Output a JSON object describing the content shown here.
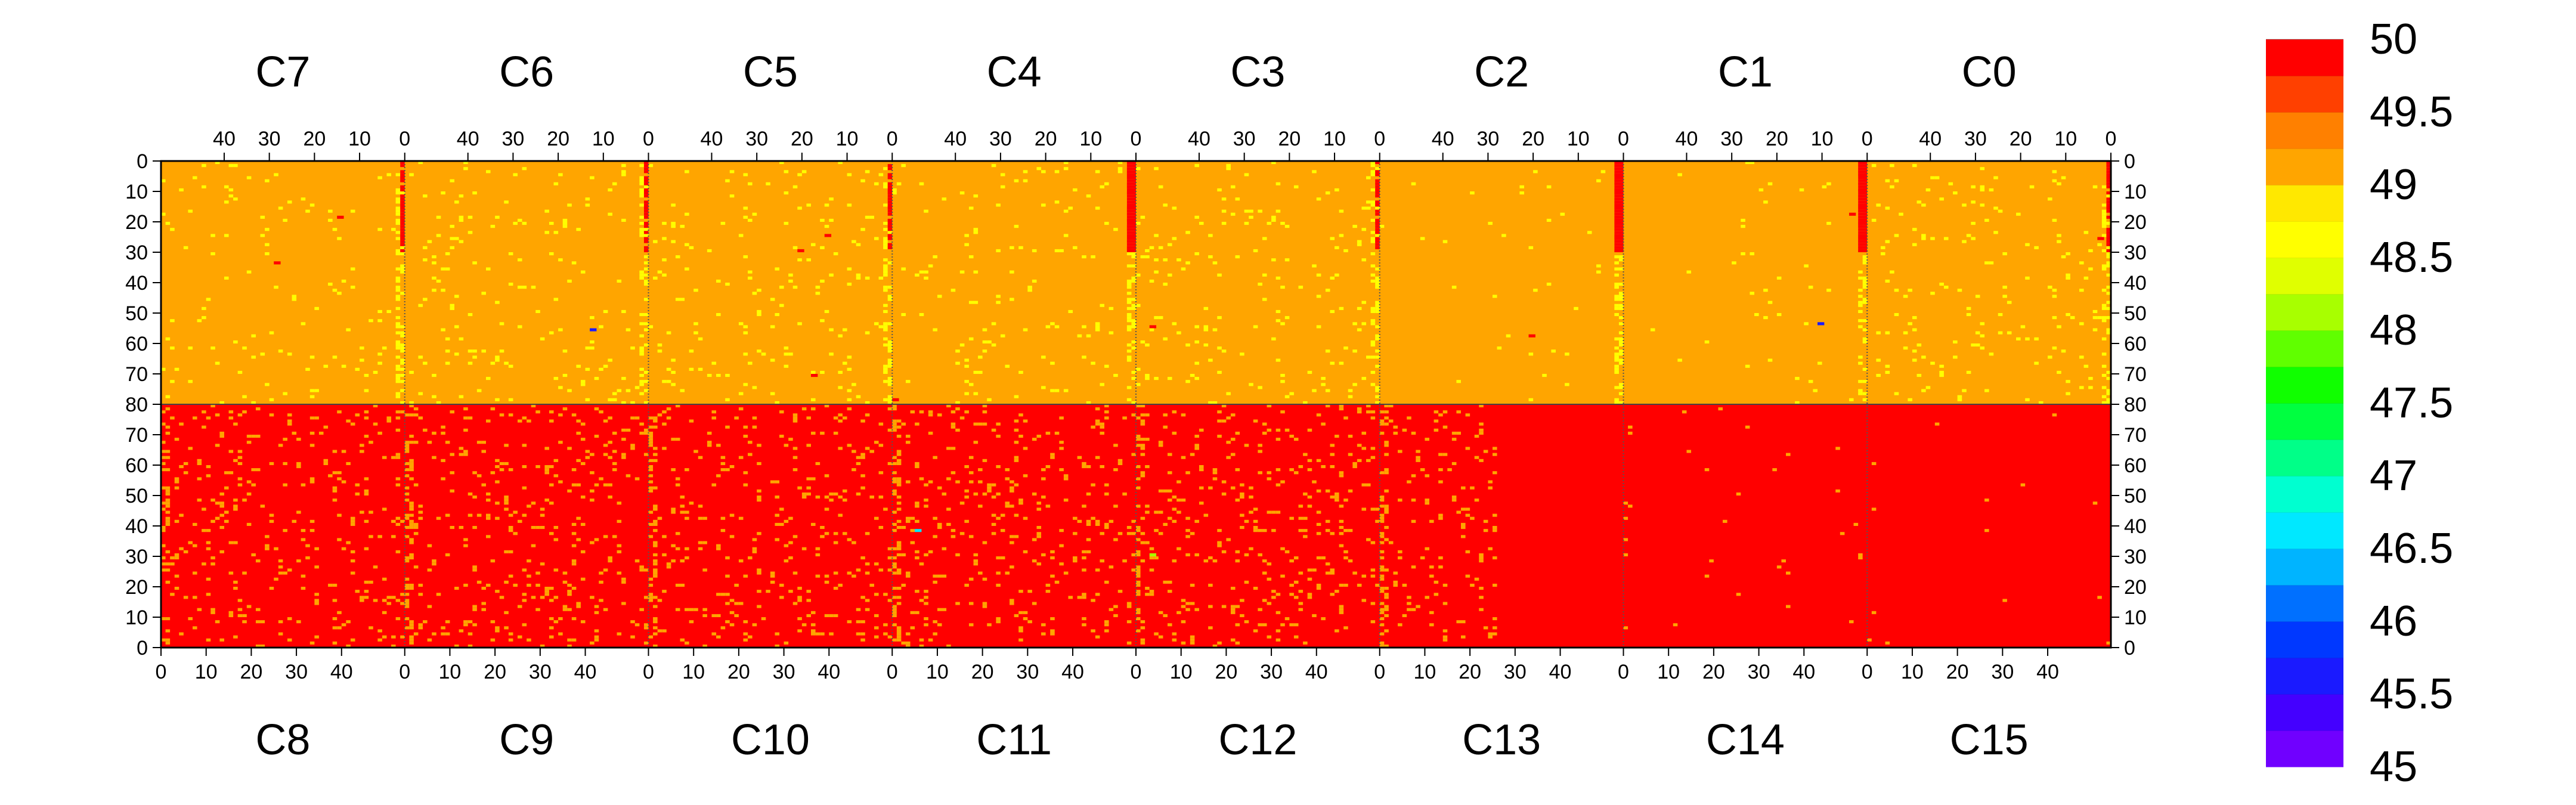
{
  "chart_data": {
    "type": "heatmap",
    "title": "",
    "xlabel": "",
    "ylabel": "",
    "chips_top": [
      "C7",
      "C6",
      "C5",
      "C4",
      "C3",
      "C2",
      "C1",
      "C0"
    ],
    "chips_bottom": [
      "C8",
      "C9",
      "C10",
      "C11",
      "C12",
      "C13",
      "C14",
      "C15"
    ],
    "chip_columns": 54,
    "chip_rows": 80,
    "top_axis_ticks": [
      "40",
      "30",
      "20",
      "10",
      "0"
    ],
    "bottom_axis_ticks": [
      "0",
      "10",
      "20",
      "30",
      "40"
    ],
    "y_ticks_top_half": [
      "0",
      "10",
      "20",
      "30",
      "40",
      "50",
      "60",
      "70",
      "80"
    ],
    "y_ticks_bottom_half": [
      "70",
      "60",
      "50",
      "40",
      "30",
      "20",
      "10",
      "0"
    ],
    "zlim": [
      45,
      50
    ],
    "colorbar_labels": [
      "50",
      "49.5",
      "49",
      "48.5",
      "48",
      "47.5",
      "47",
      "46.5",
      "46",
      "45.5",
      "45"
    ],
    "colorscale": [
      "#7000ff",
      "#4400ff",
      "#1a1aff",
      "#0038ff",
      "#0070ff",
      "#00b4ff",
      "#00e8ff",
      "#00ffd0",
      "#00ff88",
      "#00ff40",
      "#10ff00",
      "#60ff00",
      "#a8ff00",
      "#e0ff00",
      "#ffff00",
      "#ffe800",
      "#ffa500",
      "#ff8000",
      "#ff4000",
      "#ff0000"
    ],
    "background_value_top_half": 49,
    "background_value_bottom_half": 50,
    "top_half_scatter_value": 48.5,
    "bottom_half_scatter_value": 49,
    "hot_edge_columns_top_value": 50,
    "hot_edge_rows_top": [
      0,
      30
    ],
    "outlier_cells": [
      {
        "half": "top",
        "chip": 0,
        "col": 28,
        "row": 33,
        "value": 50
      },
      {
        "half": "top",
        "chip": 0,
        "col": 14,
        "row": 18,
        "value": 50
      },
      {
        "half": "top",
        "chip": 1,
        "col": 12,
        "row": 55,
        "value": 45.5
      },
      {
        "half": "top",
        "chip": 2,
        "col": 20,
        "row": 29,
        "value": 50
      },
      {
        "half": "top",
        "chip": 2,
        "col": 14,
        "row": 24,
        "value": 50
      },
      {
        "half": "top",
        "chip": 2,
        "col": 17,
        "row": 70,
        "value": 50
      },
      {
        "half": "top",
        "chip": 3,
        "col": 53,
        "row": 78,
        "value": 50
      },
      {
        "half": "top",
        "chip": 4,
        "col": 50,
        "row": 54,
        "value": 50
      },
      {
        "half": "top",
        "chip": 5,
        "col": 20,
        "row": 57,
        "value": 50
      },
      {
        "half": "top",
        "chip": 6,
        "col": 10,
        "row": 53,
        "value": 45.5
      },
      {
        "half": "top",
        "chip": 6,
        "col": 3,
        "row": 17,
        "value": 50
      },
      {
        "half": "top",
        "chip": 7,
        "col": 2,
        "row": 25,
        "value": 50
      },
      {
        "half": "bottom",
        "chip": 3,
        "col": 5,
        "row": 38,
        "value": 46.5
      },
      {
        "half": "bottom",
        "chip": 4,
        "col": 3,
        "row": 30,
        "value": 48
      }
    ]
  }
}
